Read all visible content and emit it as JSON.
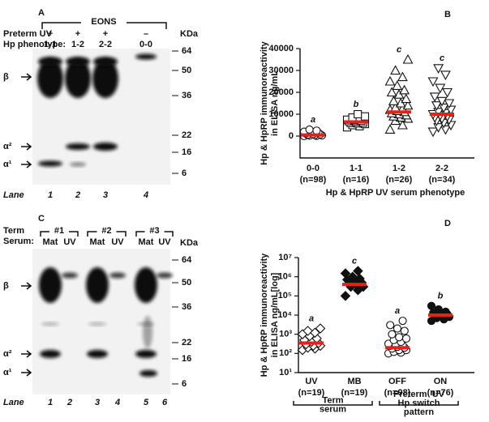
{
  "blots": [
    {
      "label": "A",
      "group_label": "EONS",
      "row1_label": "Preterm UV",
      "signs": [
        "+",
        "+",
        "+",
        "–"
      ],
      "row2_label": "Hp phenotype:",
      "phenotypes": [
        "1-1",
        "1-2",
        "2-2",
        "0-0"
      ],
      "kda_label": "KDa",
      "kda": [
        "64",
        "50",
        "36",
        "22",
        "16",
        "6"
      ],
      "bands": [
        "β",
        "α²",
        "α¹"
      ],
      "lane_label": "Lane",
      "lanes": [
        "1",
        "2",
        "3",
        "4"
      ]
    },
    {
      "label": "C",
      "row1_label": "Term",
      "row2_label": "Serum:",
      "groups": [
        "#1",
        "#2",
        "#3"
      ],
      "lane_heads": [
        "Mat",
        "UV",
        "Mat",
        "UV",
        "Mat",
        "UV"
      ],
      "kda_label": "KDa",
      "kda": [
        "64",
        "50",
        "36",
        "22",
        "16",
        "6"
      ],
      "bands": [
        "β",
        "α²",
        "α¹"
      ],
      "lane_label": "Lane",
      "lanes": [
        "1",
        "2",
        "3",
        "4",
        "5",
        "6"
      ]
    }
  ],
  "chart_data": [
    {
      "type": "dot",
      "label": "B",
      "ylabel": [
        "Hp & HpRP immunoreactivity",
        "in ELISA ng/mL"
      ],
      "xlabel": "Hp & HpRP UV serum phenotype",
      "categories": [
        "0-0",
        "1-1",
        "1-2",
        "2-2"
      ],
      "n_labels": [
        "(n=98)",
        "(n=16)",
        "(n=26)",
        "(n=34)"
      ],
      "letters": [
        "a",
        "b",
        "c",
        "c"
      ],
      "markers": [
        {
          "shape": "circle",
          "filled": false
        },
        {
          "shape": "square",
          "filled": false
        },
        {
          "shape": "triangle-up",
          "filled": false
        },
        {
          "shape": "triangle-down",
          "filled": false
        }
      ],
      "points": [
        [
          0,
          100,
          200,
          300,
          500,
          600,
          800,
          900,
          1200,
          1500,
          1800,
          2000,
          2500,
          3000
        ],
        [
          4000,
          4500,
          5000,
          5500,
          5800,
          6000,
          6200,
          6500,
          6800,
          7000,
          7200,
          7500,
          8000,
          8500,
          9000,
          10000
        ],
        [
          3000,
          5000,
          7000,
          8000,
          8500,
          9000,
          9500,
          10000,
          10500,
          11000,
          11500,
          12000,
          12500,
          13000,
          14000,
          15000,
          16000,
          17000,
          19000,
          20000,
          21000,
          23000,
          25000,
          27000,
          30000,
          35000
        ],
        [
          2000,
          3000,
          4000,
          5000,
          6000,
          7000,
          7500,
          8000,
          8500,
          9000,
          9500,
          10000,
          10500,
          11000,
          12000,
          13000,
          14000,
          15000,
          16000,
          18000,
          20000,
          22000,
          25000,
          28000,
          31000
        ]
      ],
      "medians": [
        500,
        6500,
        11000,
        10000
      ],
      "median_color": "#e8201a",
      "ylim": [
        -10000,
        40000
      ],
      "yticks": [
        0,
        10000,
        20000,
        30000,
        40000
      ],
      "log": false
    },
    {
      "type": "dot",
      "label": "D",
      "ylabel": [
        "Hp & HpRP immunoreactivity",
        "in ELISA ng/mL[log]"
      ],
      "categories": [
        "UV",
        "MB",
        "OFF",
        "ON"
      ],
      "n_labels": [
        "(n=19)",
        "(n=19)",
        "(n=98)",
        "(n=76)"
      ],
      "letters": [
        "a",
        "c",
        "a",
        "b"
      ],
      "markers": [
        {
          "shape": "diamond",
          "filled": false
        },
        {
          "shape": "diamond",
          "filled": true
        },
        {
          "shape": "circle",
          "filled": false
        },
        {
          "shape": "circle",
          "filled": true
        }
      ],
      "points": [
        [
          150,
          180,
          200,
          250,
          250,
          300,
          350,
          400,
          500,
          600,
          800,
          1000,
          1200,
          1500,
          2000
        ],
        [
          100000,
          200000,
          300000,
          300000,
          400000,
          450000,
          500000,
          600000,
          700000,
          800000,
          1000000,
          1500000,
          2000000
        ],
        [
          100,
          110,
          120,
          150,
          150,
          180,
          200,
          220,
          250,
          260,
          300,
          320,
          400,
          500,
          600,
          700,
          1000,
          1500,
          2000,
          3000,
          5000
        ],
        [
          5000,
          6000,
          7000,
          8000,
          9000,
          10000,
          11000,
          12000,
          13000,
          15000,
          20000,
          30000
        ]
      ],
      "medians": [
        350,
        400000,
        200,
        10000
      ],
      "median_color": "#e8201a",
      "ylim": [
        10,
        10000000
      ],
      "log": true,
      "yticks": [
        {
          "value": 10,
          "label": "10¹"
        },
        {
          "value": 100,
          "label": "10²"
        },
        {
          "value": 1000,
          "label": "10³"
        },
        {
          "value": 10000,
          "label": "10⁴"
        },
        {
          "value": 100000,
          "label": "10⁵"
        },
        {
          "value": 1000000,
          "label": "10⁶"
        },
        {
          "value": 10000000,
          "label": "10⁷"
        }
      ],
      "bracket_labels": [
        [
          "Term",
          "serum"
        ],
        [
          "Preterm  UV",
          "Hp switch",
          "pattern"
        ]
      ]
    }
  ]
}
